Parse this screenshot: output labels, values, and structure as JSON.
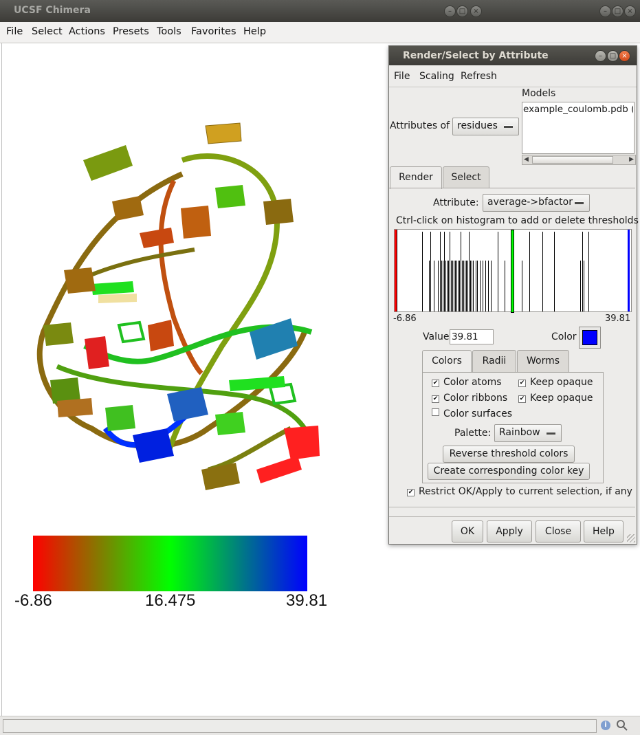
{
  "window": {
    "title": "UCSF Chimera",
    "menu": [
      "File",
      "Select",
      "Actions",
      "Presets",
      "Tools",
      "Favorites",
      "Help"
    ]
  },
  "color_key": {
    "min_label": "-6.86",
    "mid_label": "16.475",
    "max_label": "39.81",
    "colors": [
      "#ff0000",
      "#00ff00",
      "#0000ff"
    ]
  },
  "dialog": {
    "title": "Render/Select by Attribute",
    "menu": [
      "File",
      "Scaling",
      "Refresh"
    ],
    "attributes_of_label": "Attributes of",
    "attributes_of_value": "residues",
    "models_label": "Models",
    "models": [
      "example_coulomb.pdb ("
    ],
    "tabs": [
      "Render",
      "Select"
    ],
    "active_tab": "Render",
    "attribute_label": "Attribute:",
    "attribute_value": "average->bfactor",
    "histogram_hint": "Ctrl-click on histogram to add or delete thresholds",
    "histogram_min": "-6.86",
    "histogram_max": "39.81",
    "threshold_colors": [
      "#ff0000",
      "#00ff00",
      "#0000ff"
    ],
    "value_label": "Value",
    "value": "39.81",
    "color_label": "Color",
    "color_value": "#0000ff",
    "sub_tabs": [
      "Colors",
      "Radii",
      "Worms"
    ],
    "active_sub_tab": "Colors",
    "checks": {
      "color_atoms": {
        "label": "Color atoms",
        "checked": true
      },
      "keep_opaque_1": {
        "label": "Keep opaque",
        "checked": true
      },
      "color_ribbons": {
        "label": "Color ribbons",
        "checked": true
      },
      "keep_opaque_2": {
        "label": "Keep opaque",
        "checked": true
      },
      "color_surfaces": {
        "label": "Color surfaces",
        "checked": false
      },
      "restrict": {
        "label": "Restrict OK/Apply to current selection, if any",
        "checked": true
      }
    },
    "palette_label": "Palette:",
    "palette_value": "Rainbow",
    "reverse_button": "Reverse threshold colors",
    "create_key_button": "Create corresponding color key",
    "buttons": {
      "ok": "OK",
      "apply": "Apply",
      "close": "Close",
      "help": "Help"
    }
  }
}
